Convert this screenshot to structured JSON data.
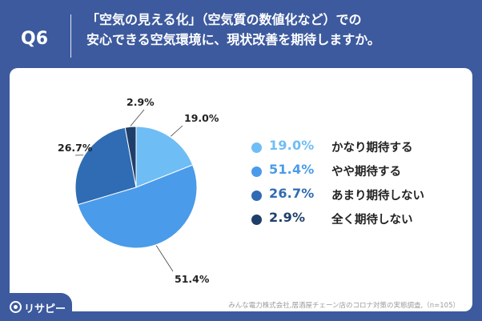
{
  "question": {
    "number": "Q6",
    "title_line1": "「空気の見える化」（空気質の数値化など）での",
    "title_line2": "安心できる空気環境に、現状改善を期待しますか。"
  },
  "source_note": "みんな電力株式会社,居酒屋チェーン店のコロナ対策の実態調査,（n=105）",
  "brand": {
    "name": "リサピー"
  },
  "chart_data": {
    "type": "pie",
    "title": "",
    "unit": "%",
    "start": "12 o'clock, clockwise",
    "slices": [
      {
        "label": "かなり期待する",
        "value": 19.0,
        "display": "19.0%",
        "color": "#6fbdf5"
      },
      {
        "label": "やや期待する",
        "value": 51.4,
        "display": "51.4%",
        "color": "#4a9bea"
      },
      {
        "label": "あまり期待しない",
        "value": 26.7,
        "display": "26.7%",
        "color": "#2f6cb3"
      },
      {
        "label": "全く期待しない",
        "value": 2.9,
        "display": "2.9%",
        "color": "#1f3f6a"
      }
    ],
    "legend": "right"
  }
}
